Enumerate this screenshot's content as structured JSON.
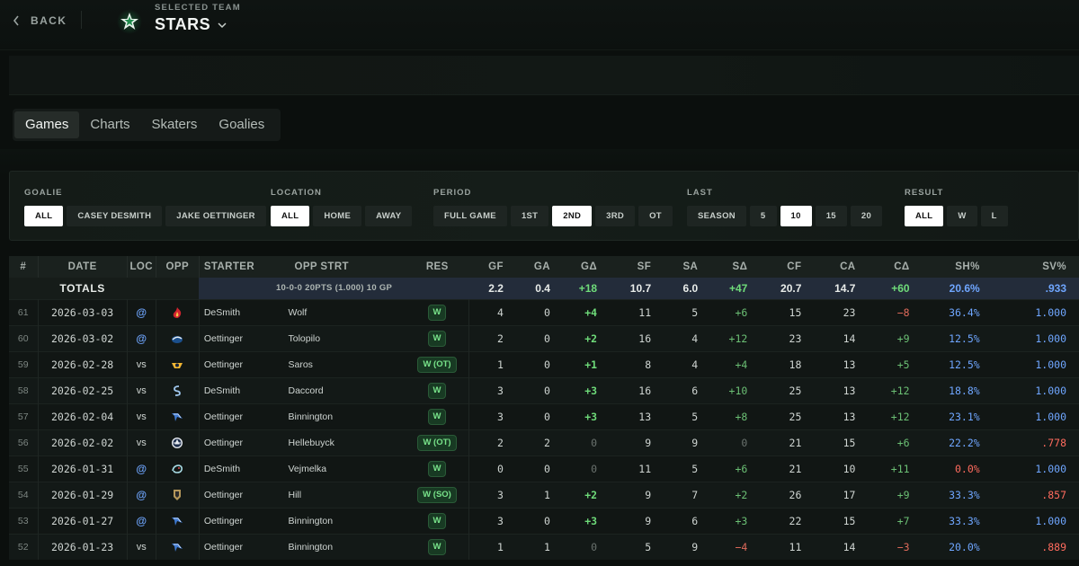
{
  "header": {
    "back_label": "BACK",
    "selected_label": "SELECTED TEAM",
    "team_name": "STARS",
    "team_color": "#1f8a4c"
  },
  "tabs": [
    {
      "label": "Games",
      "active": true
    },
    {
      "label": "Charts",
      "active": false
    },
    {
      "label": "Skaters",
      "active": false
    },
    {
      "label": "Goalies",
      "active": false
    }
  ],
  "filters": {
    "goalie": {
      "label": "GOALIE",
      "options": [
        "ALL",
        "CASEY DESMITH",
        "JAKE OETTINGER"
      ],
      "selected": "ALL"
    },
    "location": {
      "label": "LOCATION",
      "options": [
        "ALL",
        "HOME",
        "AWAY"
      ],
      "selected": "ALL"
    },
    "period": {
      "label": "PERIOD",
      "options": [
        "FULL GAME",
        "1ST",
        "2ND",
        "3RD",
        "OT"
      ],
      "selected": "2ND"
    },
    "last": {
      "label": "LAST",
      "options": [
        "SEASON",
        "5",
        "10",
        "15",
        "20"
      ],
      "selected": "10"
    },
    "result": {
      "label": "RESULT",
      "options": [
        "ALL",
        "W",
        "L"
      ],
      "selected": "ALL"
    }
  },
  "table": {
    "columns": [
      "#",
      "DATE",
      "LOC",
      "OPP",
      "STARTER",
      "OPP STRT",
      "RES",
      "GF",
      "GA",
      "GΔ",
      "SF",
      "SA",
      "SΔ",
      "CF",
      "CA",
      "CΔ",
      "SH%",
      "SV%"
    ],
    "totals": {
      "label": "TOTALS",
      "summary": "10-0-0 20PTS (1.000) 10 GP",
      "gf": "2.2",
      "ga": "0.4",
      "gd": "+18",
      "sf": "10.7",
      "sa": "6.0",
      "sd": "+47",
      "cf": "20.7",
      "ca": "14.7",
      "cd": "+60",
      "sh": "20.6%",
      "sv": ".933"
    },
    "rows": [
      {
        "num": "61",
        "date": "2026-03-03",
        "loc": "@",
        "opp_icon": "flames-logo-icon",
        "starter": "DeSmith",
        "opp_strt": "Wolf",
        "res": "W",
        "gf": "4",
        "ga": "0",
        "gd": "+4",
        "sf": "11",
        "sa": "5",
        "sd": "+6",
        "cf": "15",
        "ca": "23",
        "cd": "−8",
        "sh": "36.4%",
        "sv": "1.000"
      },
      {
        "num": "60",
        "date": "2026-03-02",
        "loc": "@",
        "opp_icon": "canucks-logo-icon",
        "starter": "Oettinger",
        "opp_strt": "Tolopilo",
        "res": "W",
        "gf": "2",
        "ga": "0",
        "gd": "+2",
        "sf": "16",
        "sa": "4",
        "sd": "+12",
        "cf": "23",
        "ca": "14",
        "cd": "+9",
        "sh": "12.5%",
        "sv": "1.000"
      },
      {
        "num": "59",
        "date": "2026-02-28",
        "loc": "vs",
        "opp_icon": "predators-logo-icon",
        "starter": "Oettinger",
        "opp_strt": "Saros",
        "res": "W (OT)",
        "gf": "1",
        "ga": "0",
        "gd": "+1",
        "sf": "8",
        "sa": "4",
        "sd": "+4",
        "cf": "18",
        "ca": "13",
        "cd": "+5",
        "sh": "12.5%",
        "sv": "1.000"
      },
      {
        "num": "58",
        "date": "2026-02-25",
        "loc": "vs",
        "opp_icon": "sabres-logo-icon",
        "starter": "DeSmith",
        "opp_strt": "Daccord",
        "res": "W",
        "gf": "3",
        "ga": "0",
        "gd": "+3",
        "sf": "16",
        "sa": "6",
        "sd": "+10",
        "cf": "25",
        "ca": "13",
        "cd": "+12",
        "sh": "18.8%",
        "sv": "1.000"
      },
      {
        "num": "57",
        "date": "2026-02-04",
        "loc": "vs",
        "opp_icon": "blues-logo-icon",
        "starter": "Oettinger",
        "opp_strt": "Binnington",
        "res": "W",
        "gf": "3",
        "ga": "0",
        "gd": "+3",
        "sf": "13",
        "sa": "5",
        "sd": "+8",
        "cf": "25",
        "ca": "13",
        "cd": "+12",
        "sh": "23.1%",
        "sv": "1.000"
      },
      {
        "num": "56",
        "date": "2026-02-02",
        "loc": "vs",
        "opp_icon": "jets-logo-icon",
        "starter": "Oettinger",
        "opp_strt": "Hellebuyck",
        "res": "W (OT)",
        "gf": "2",
        "ga": "2",
        "gd": "0",
        "sf": "9",
        "sa": "9",
        "sd": "0",
        "cf": "21",
        "ca": "15",
        "cd": "+6",
        "sh": "22.2%",
        "sv": ".778"
      },
      {
        "num": "55",
        "date": "2026-01-31",
        "loc": "@",
        "opp_icon": "kraken-logo-icon",
        "starter": "DeSmith",
        "opp_strt": "Vejmelka",
        "res": "W",
        "gf": "0",
        "ga": "0",
        "gd": "0",
        "sf": "11",
        "sa": "5",
        "sd": "+6",
        "cf": "21",
        "ca": "10",
        "cd": "+11",
        "sh": "0.0%",
        "sv": "1.000"
      },
      {
        "num": "54",
        "date": "2026-01-29",
        "loc": "@",
        "opp_icon": "golden-knights-logo-icon",
        "starter": "Oettinger",
        "opp_strt": "Hill",
        "res": "W (SO)",
        "gf": "3",
        "ga": "1",
        "gd": "+2",
        "sf": "9",
        "sa": "7",
        "sd": "+2",
        "cf": "26",
        "ca": "17",
        "cd": "+9",
        "sh": "33.3%",
        "sv": ".857"
      },
      {
        "num": "53",
        "date": "2026-01-27",
        "loc": "@",
        "opp_icon": "blues-logo-icon",
        "starter": "Oettinger",
        "opp_strt": "Binnington",
        "res": "W",
        "gf": "3",
        "ga": "0",
        "gd": "+3",
        "sf": "9",
        "sa": "6",
        "sd": "+3",
        "cf": "22",
        "ca": "15",
        "cd": "+7",
        "sh": "33.3%",
        "sv": "1.000"
      },
      {
        "num": "52",
        "date": "2026-01-23",
        "loc": "vs",
        "opp_icon": "blues-logo-icon",
        "starter": "Oettinger",
        "opp_strt": "Binnington",
        "res": "W",
        "gf": "1",
        "ga": "1",
        "gd": "0",
        "sf": "5",
        "sa": "9",
        "sd": "−4",
        "cf": "11",
        "ca": "14",
        "cd": "−3",
        "sh": "20.0%",
        "sv": ".889"
      }
    ]
  }
}
